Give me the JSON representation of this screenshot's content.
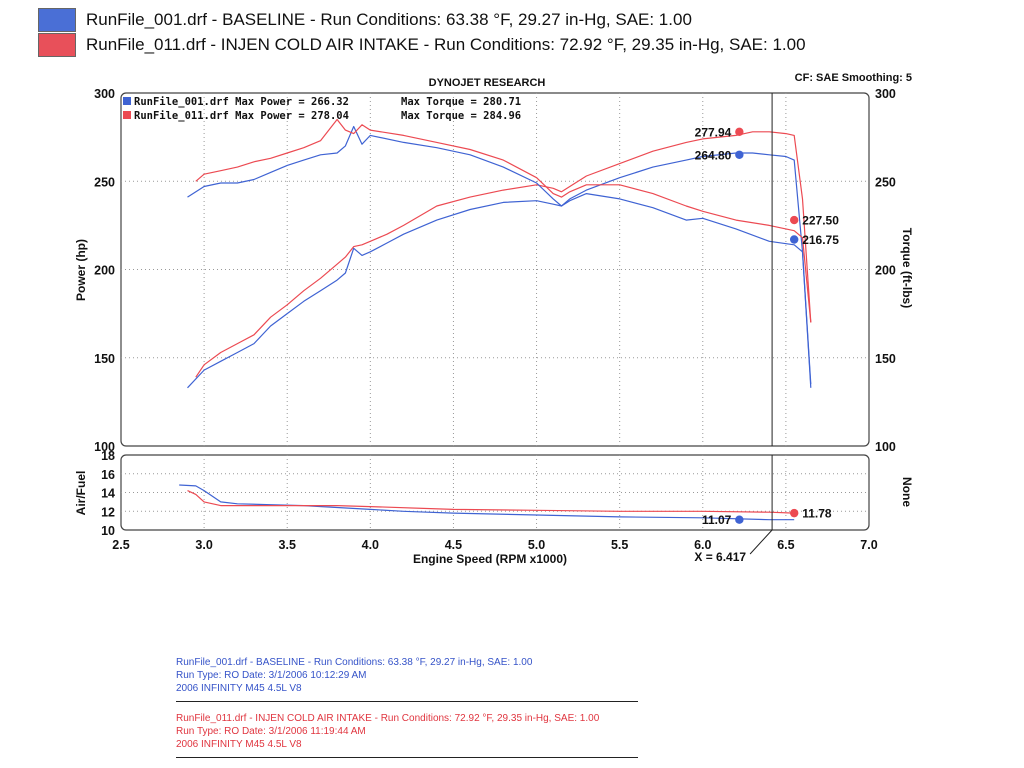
{
  "legend": [
    {
      "text": "RunFile_001.drf - BASELINE -  Run Conditions: 63.38 °F, 29.27 in-Hg, SAE: 1.00",
      "color": "#4a6fd6"
    },
    {
      "text": "RunFile_011.drf - INJEN COLD AIR INTAKE -  Run Conditions: 72.92 °F, 29.35 in-Hg, SAE: 1.00",
      "color": "#e8505a"
    }
  ],
  "header": {
    "title": "DYNOJET RESEARCH",
    "cf_smoothing": "CF: SAE  Smoothing: 5"
  },
  "max_info": [
    {
      "text": "RunFile_001.drf Max Power = 266.32",
      "torque": "Max Torque = 280.71"
    },
    {
      "text": "RunFile_011.drf Max Power = 278.04",
      "torque": "Max Torque = 284.96"
    }
  ],
  "footer": {
    "run1": [
      "RunFile_001.drf - BASELINE  -  Run Conditions: 63.38 °F, 29.27 in-Hg, SAE: 1.00",
      "Run Type: RO  Date: 3/1/2006 10:12:29 AM",
      "2006 INFINITY M45 4.5L V8"
    ],
    "run2": [
      "RunFile_011.drf - INJEN COLD AIR INTAKE  -  Run Conditions: 72.92 °F, 29.35 in-Hg, SAE: 1.00",
      "Run Type: RO  Date: 3/1/2006 11:19:44 AM",
      "2006 INFINITY M45 4.5L V8"
    ]
  },
  "colors": {
    "baseline": "#3f63d3",
    "intake": "#ec4a52",
    "grid": "#999999",
    "frame": "#444444"
  },
  "chart_data": [
    {
      "type": "line",
      "xlabel": "Engine Speed (RPM x1000)",
      "ylabel": "Power (hp)",
      "y2label": "Torque (ft-lbs)",
      "xlim": [
        2.5,
        7.0
      ],
      "ylim": [
        100,
        300
      ],
      "y2lim": [
        100,
        300
      ],
      "x_ticks": [
        "2.5",
        "3.0",
        "3.5",
        "4.0",
        "4.5",
        "5.0",
        "5.5",
        "6.0",
        "6.5",
        "7.0"
      ],
      "y_ticks": [
        "100",
        "150",
        "200",
        "250",
        "300"
      ],
      "y2_ticks": [
        "100",
        "150",
        "200",
        "250",
        "300"
      ],
      "cursor_x": 6.417,
      "cursor_label": "X = 6.417",
      "grid": true,
      "series": [
        {
          "name": "RunFile_001.drf",
          "measure": "power",
          "run": "baseline",
          "x": [
            2.9,
            3.0,
            3.1,
            3.2,
            3.3,
            3.4,
            3.5,
            3.6,
            3.7,
            3.8,
            3.85,
            3.9,
            3.95,
            4.0,
            4.1,
            4.2,
            4.4,
            4.6,
            4.8,
            5.0,
            5.1,
            5.15,
            5.2,
            5.3,
            5.5,
            5.7,
            5.9,
            6.0,
            6.2,
            6.3,
            6.4,
            6.5,
            6.55,
            6.6,
            6.65
          ],
          "y": [
            133,
            143,
            148,
            153,
            158,
            168,
            175,
            182,
            188,
            194,
            198,
            212,
            208,
            210,
            215,
            220,
            228,
            234,
            238,
            239,
            237,
            236,
            240,
            245,
            252,
            258,
            262,
            264,
            266,
            266,
            265,
            264,
            262,
            210,
            133
          ]
        },
        {
          "name": "RunFile_011.drf",
          "measure": "power",
          "run": "intake",
          "x": [
            2.95,
            3.0,
            3.1,
            3.2,
            3.3,
            3.4,
            3.5,
            3.6,
            3.7,
            3.8,
            3.85,
            3.9,
            3.95,
            4.0,
            4.1,
            4.2,
            4.4,
            4.6,
            4.8,
            5.0,
            5.1,
            5.15,
            5.2,
            5.3,
            5.5,
            5.7,
            5.9,
            6.0,
            6.2,
            6.3,
            6.4,
            6.5,
            6.55,
            6.6,
            6.65
          ],
          "y": [
            139,
            146,
            153,
            158,
            163,
            173,
            180,
            188,
            195,
            203,
            207,
            213,
            214,
            216,
            220,
            225,
            236,
            241,
            245,
            248,
            246,
            244,
            247,
            253,
            260,
            267,
            272,
            274,
            276,
            278,
            278,
            277,
            276,
            240,
            170
          ]
        },
        {
          "name": "RunFile_001.drf",
          "measure": "torque",
          "run": "baseline",
          "x": [
            2.9,
            3.0,
            3.1,
            3.2,
            3.3,
            3.4,
            3.5,
            3.6,
            3.7,
            3.8,
            3.85,
            3.9,
            3.95,
            4.0,
            4.2,
            4.4,
            4.6,
            4.8,
            5.0,
            5.1,
            5.15,
            5.2,
            5.3,
            5.5,
            5.7,
            5.9,
            6.0,
            6.2,
            6.4,
            6.55,
            6.6,
            6.65
          ],
          "y": [
            241,
            247,
            249,
            249,
            251,
            255,
            259,
            262,
            265,
            266,
            270,
            281,
            271,
            276,
            272,
            269,
            265,
            258,
            249,
            240,
            236,
            239,
            243,
            240,
            235,
            228,
            229,
            223,
            216,
            214,
            210,
            135
          ]
        },
        {
          "name": "RunFile_011.drf",
          "measure": "torque",
          "run": "intake",
          "x": [
            2.95,
            3.0,
            3.1,
            3.2,
            3.3,
            3.4,
            3.5,
            3.6,
            3.7,
            3.8,
            3.85,
            3.9,
            3.95,
            4.0,
            4.2,
            4.4,
            4.6,
            4.8,
            5.0,
            5.1,
            5.15,
            5.2,
            5.3,
            5.5,
            5.7,
            5.9,
            6.0,
            6.2,
            6.4,
            6.55,
            6.6,
            6.65
          ],
          "y": [
            250,
            254,
            256,
            258,
            261,
            263,
            266,
            269,
            273,
            285,
            279,
            277,
            282,
            279,
            276,
            272,
            268,
            262,
            252,
            243,
            241,
            244,
            248,
            248,
            243,
            236,
            233,
            228,
            225,
            222,
            218,
            170
          ]
        }
      ],
      "markers": [
        {
          "label": "277.94",
          "x": 6.22,
          "y": 278.0,
          "run": "intake",
          "side": "left"
        },
        {
          "label": "264.80",
          "x": 6.22,
          "y": 265.0,
          "run": "baseline",
          "side": "left"
        },
        {
          "label": "227.50",
          "x": 6.55,
          "y": 228.0,
          "run": "intake",
          "side": "right"
        },
        {
          "label": "216.75",
          "x": 6.55,
          "y": 217.0,
          "run": "baseline",
          "side": "right"
        }
      ]
    },
    {
      "type": "line",
      "ylabel": "Air/Fuel",
      "y2label": "None",
      "xlim": [
        2.5,
        7.0
      ],
      "ylim": [
        10,
        18
      ],
      "y_ticks": [
        "10",
        "12",
        "14",
        "16",
        "18"
      ],
      "grid": true,
      "series": [
        {
          "name": "RunFile_001.drf",
          "measure": "air-fuel",
          "run": "baseline",
          "x": [
            2.85,
            2.95,
            3.0,
            3.05,
            3.1,
            3.2,
            3.4,
            3.6,
            3.8,
            4.0,
            4.2,
            4.5,
            5.0,
            5.5,
            6.0,
            6.4,
            6.55
          ],
          "y": [
            14.8,
            14.7,
            14.2,
            13.6,
            13.0,
            12.8,
            12.7,
            12.6,
            12.4,
            12.2,
            12.0,
            11.8,
            11.6,
            11.4,
            11.3,
            11.1,
            11.1
          ]
        },
        {
          "name": "RunFile_011.drf",
          "measure": "air-fuel",
          "run": "intake",
          "x": [
            2.9,
            2.95,
            3.0,
            3.1,
            3.3,
            3.5,
            3.8,
            4.0,
            4.5,
            5.0,
            5.5,
            6.0,
            6.4,
            6.55
          ],
          "y": [
            14.2,
            13.8,
            13.0,
            12.6,
            12.6,
            12.6,
            12.6,
            12.5,
            12.2,
            12.1,
            12.0,
            12.0,
            11.9,
            11.8
          ]
        }
      ],
      "markers": [
        {
          "label": "11.07",
          "x": 6.22,
          "y": 11.1,
          "run": "baseline",
          "side": "left"
        },
        {
          "label": "11.78",
          "x": 6.55,
          "y": 11.8,
          "run": "intake",
          "side": "right"
        }
      ]
    }
  ]
}
